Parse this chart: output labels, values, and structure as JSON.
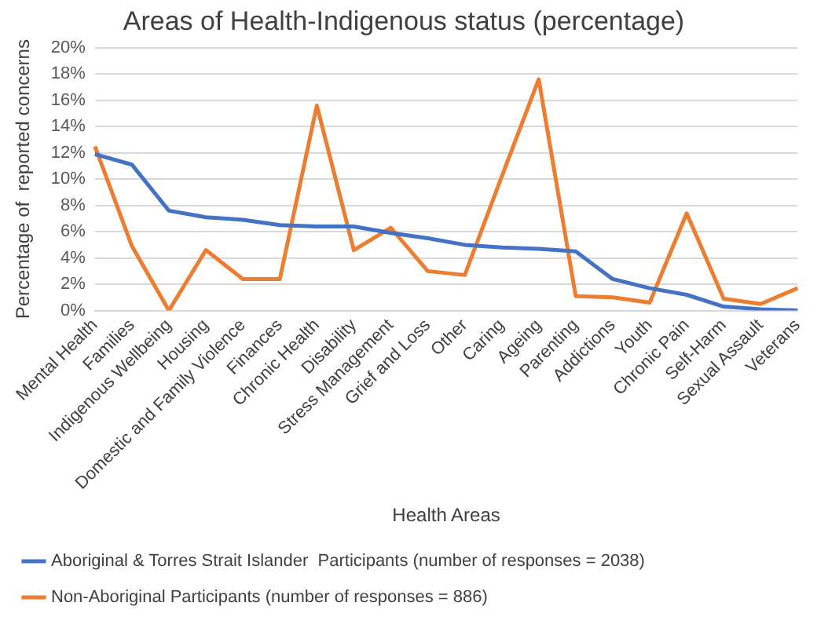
{
  "chart_data": {
    "type": "line",
    "title": "Areas of Health-Indigenous status (percentage)",
    "xlabel": "Health Areas",
    "ylabel": "Percentage of  reported concerns",
    "categories": [
      "Mental Health",
      "Families",
      "Indigenous Wellbeing",
      "Housing",
      "Domestic and Family Violence",
      "Finances",
      "Chronic Health",
      "Disability",
      "Stress Management",
      "Grief and Loss",
      "Other",
      "Caring",
      "Ageing",
      "Parenting",
      "Addictions",
      "Youth",
      "Chronic Pain",
      "Self-Harm",
      "Sexual Assault",
      "Veterans"
    ],
    "series": [
      {
        "name": "Aboriginal & Torres Strait Islander  Participants (number of responses = 2038)",
        "color": "#4472c4",
        "values": [
          11.9,
          11.1,
          7.6,
          7.1,
          6.9,
          6.5,
          6.4,
          6.4,
          5.9,
          5.5,
          5.0,
          4.8,
          4.7,
          4.5,
          2.4,
          1.7,
          1.2,
          0.3,
          0.1,
          0.0
        ]
      },
      {
        "name": "Non-Aboriginal Participants (number of responses = 886)",
        "color": "#ed7d31",
        "values": [
          12.5,
          4.9,
          0.0,
          4.6,
          2.4,
          2.4,
          15.6,
          4.6,
          6.3,
          3.0,
          2.7,
          10.2,
          17.6,
          1.1,
          1.0,
          0.6,
          7.4,
          0.9,
          0.5,
          1.7
        ]
      }
    ],
    "ylim": [
      0,
      20
    ],
    "yticks": [
      {
        "value": 0,
        "label": "0%"
      },
      {
        "value": 2,
        "label": "2%"
      },
      {
        "value": 4,
        "label": "4%"
      },
      {
        "value": 6,
        "label": "6%"
      },
      {
        "value": 8,
        "label": "8%"
      },
      {
        "value": 10,
        "label": "10%"
      },
      {
        "value": 12,
        "label": "12%"
      },
      {
        "value": 14,
        "label": "14%"
      },
      {
        "value": 16,
        "label": "16%"
      },
      {
        "value": 18,
        "label": "18%"
      },
      {
        "value": 20,
        "label": "20%"
      }
    ],
    "grid": "y",
    "legend": "bottom",
    "marker": "none",
    "line_style": "solid"
  }
}
